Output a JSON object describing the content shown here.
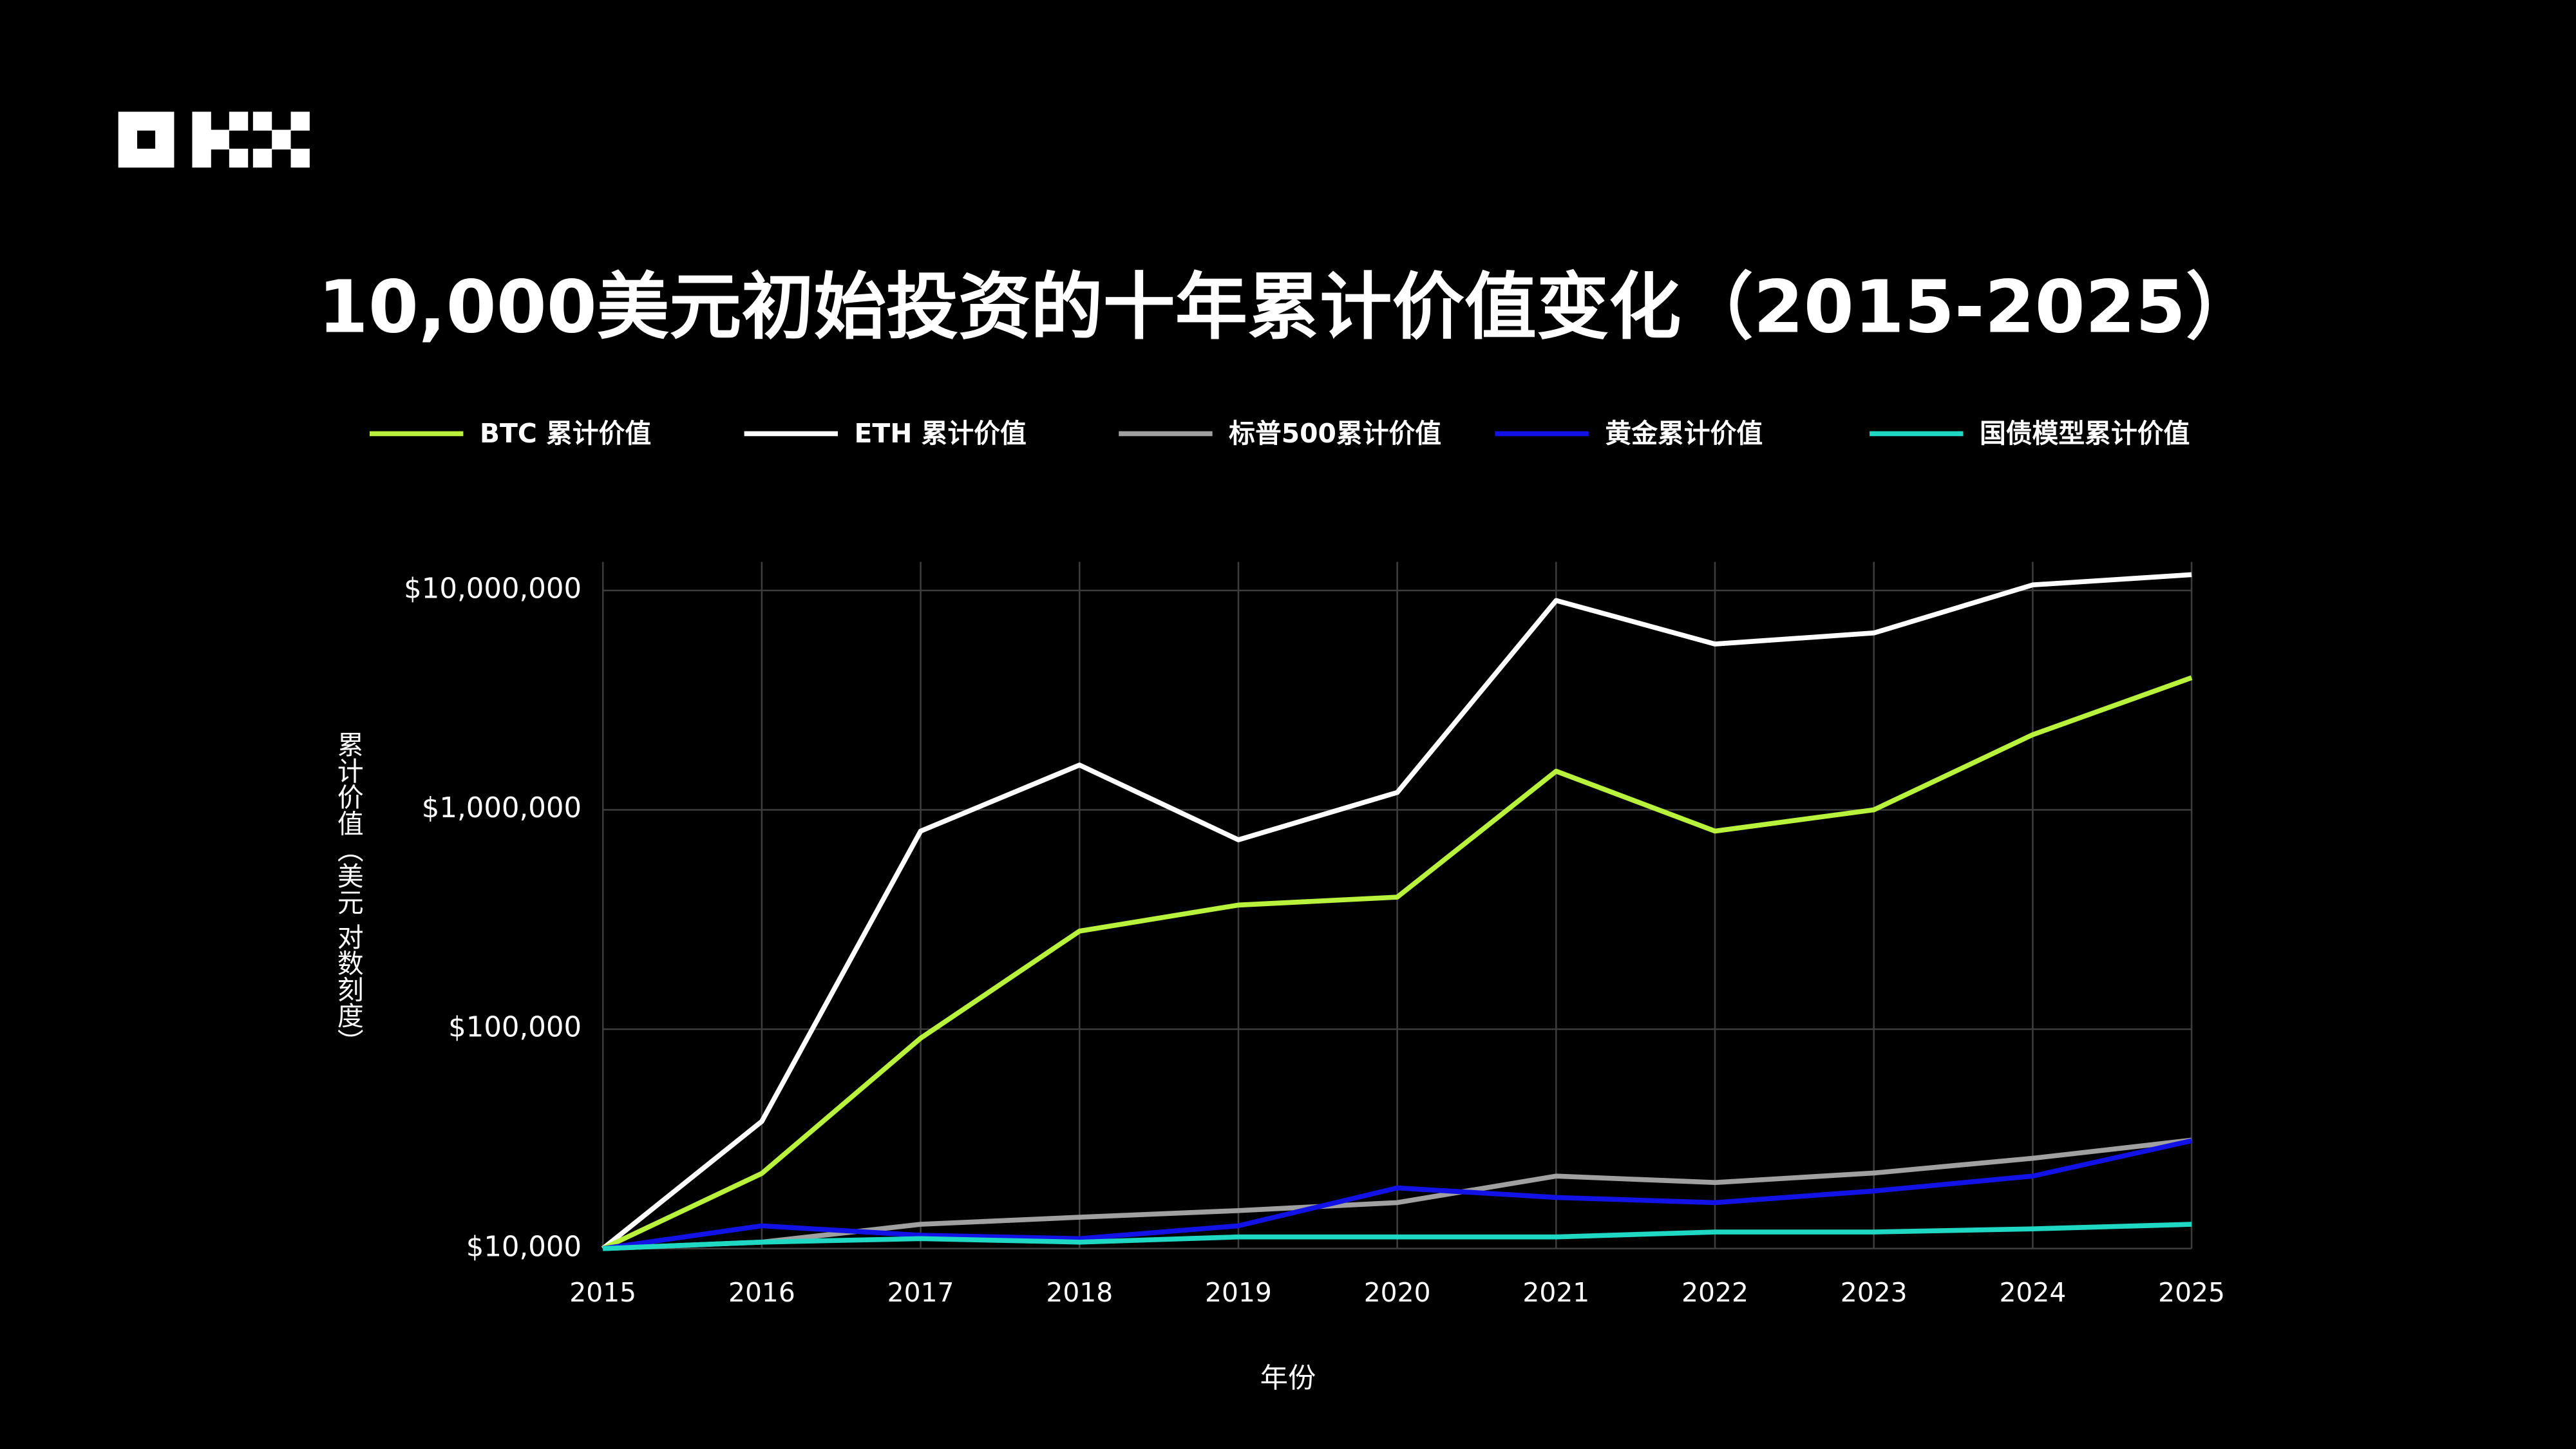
{
  "chart_data": {
    "type": "line",
    "title": "10,000美元初始投资的十年累计价值变化（2015-2025）",
    "x_label": "年份",
    "y_label": "累计价值（美元 对数刻度）",
    "categories": [
      "2015",
      "2016",
      "2017",
      "2018",
      "2019",
      "2020",
      "2021",
      "2022",
      "2023",
      "2024",
      "2025"
    ],
    "series": [
      {
        "name": "BTC 累计价值",
        "color": "#b8f23c",
        "values": [
          10000,
          22000,
          91000,
          280000,
          368000,
          400000,
          1500000,
          800000,
          1000000,
          2200000,
          4000000
        ]
      },
      {
        "name": "ETH 累计价值",
        "color": "#ffffff",
        "values": [
          10000,
          38000,
          800000,
          1600000,
          730000,
          1200000,
          9000000,
          5700000,
          6400000,
          10600000,
          11800000
        ]
      },
      {
        "name": "标普500累计价值",
        "color": "#a0a0a0",
        "values": [
          10000,
          10700,
          12900,
          13900,
          14900,
          16200,
          21400,
          20000,
          22100,
          25800,
          31200
        ]
      },
      {
        "name": "黄金累计价值",
        "color": "#1212e6",
        "values": [
          10000,
          12700,
          11500,
          11100,
          12700,
          18900,
          17100,
          16200,
          18300,
          21400,
          31000
        ]
      },
      {
        "name": "国债模型累计价值",
        "color": "#1fd8c4",
        "values": [
          10000,
          10700,
          11100,
          10700,
          11300,
          11300,
          11300,
          11900,
          11900,
          12300,
          12900
        ]
      }
    ],
    "log_scale": true,
    "grid": true,
    "ylim": [
      10000,
      13500000
    ],
    "yticks": [
      {
        "value": 10000,
        "label": "$10,000"
      },
      {
        "value": 100000,
        "label": "$100,000"
      },
      {
        "value": 1000000,
        "label": "$1,000,000"
      },
      {
        "value": 10000000,
        "label": "$10,000,000"
      }
    ],
    "legend": "top"
  }
}
